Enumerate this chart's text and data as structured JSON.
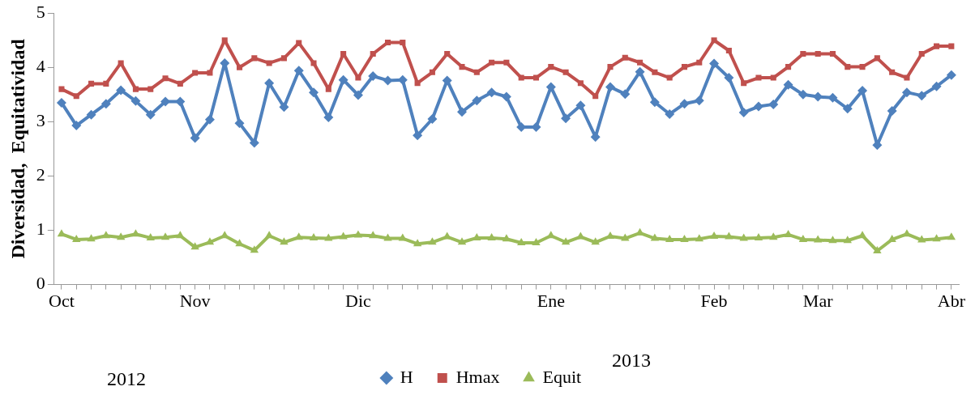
{
  "chart_data": {
    "type": "line",
    "ylabel": "Diversidad,  Equitatividad",
    "categories": [
      "Oct",
      null,
      null,
      null,
      null,
      null,
      null,
      null,
      null,
      "Nov",
      null,
      null,
      null,
      null,
      null,
      null,
      null,
      null,
      null,
      null,
      "Dic",
      null,
      null,
      null,
      null,
      null,
      null,
      null,
      null,
      null,
      null,
      null,
      null,
      "Ene",
      null,
      null,
      null,
      null,
      null,
      null,
      null,
      null,
      null,
      null,
      "Feb",
      null,
      null,
      null,
      null,
      null,
      null,
      "Mar",
      null,
      null,
      null,
      null,
      null,
      null,
      null,
      null,
      "Abr"
    ],
    "series": [
      {
        "name": "H",
        "color": "#4f81bd",
        "marker": "diamond",
        "values": [
          3.35,
          2.93,
          3.13,
          3.33,
          3.58,
          3.38,
          3.13,
          3.37,
          3.37,
          2.7,
          3.04,
          4.08,
          2.97,
          2.61,
          3.71,
          3.27,
          3.94,
          3.54,
          3.08,
          3.77,
          3.49,
          3.84,
          3.76,
          3.77,
          2.75,
          3.05,
          3.76,
          3.18,
          3.39,
          3.54,
          3.46,
          2.9,
          2.9,
          3.64,
          3.06,
          3.3,
          2.72,
          3.64,
          3.51,
          3.92,
          3.36,
          3.14,
          3.33,
          3.39,
          4.07,
          3.81,
          3.17,
          3.28,
          3.32,
          3.68,
          3.5,
          3.46,
          3.44,
          3.24,
          3.57,
          2.57,
          3.2,
          3.54,
          3.48,
          3.65,
          3.86
        ]
      },
      {
        "name": "Hmax",
        "color": "#c0504d",
        "marker": "square",
        "values": [
          3.6,
          3.47,
          3.7,
          3.7,
          4.08,
          3.6,
          3.6,
          3.8,
          3.7,
          3.9,
          3.9,
          4.5,
          4.0,
          4.17,
          4.08,
          4.17,
          4.45,
          4.08,
          3.6,
          4.25,
          3.81,
          4.25,
          4.46,
          4.46,
          3.71,
          3.91,
          4.25,
          4.01,
          3.91,
          4.09,
          4.09,
          3.81,
          3.81,
          4.01,
          3.91,
          3.71,
          3.47,
          4.01,
          4.18,
          4.09,
          3.91,
          3.81,
          4.01,
          4.09,
          4.5,
          4.31,
          3.71,
          3.81,
          3.81,
          4.01,
          4.25,
          4.25,
          4.25,
          4.01,
          4.01,
          4.17,
          3.91,
          3.81,
          4.25,
          4.39,
          4.39
        ]
      },
      {
        "name": "Equit",
        "color": "#9bbb59",
        "marker": "triangle",
        "values": [
          0.93,
          0.83,
          0.84,
          0.9,
          0.87,
          0.93,
          0.86,
          0.87,
          0.9,
          0.69,
          0.78,
          0.9,
          0.75,
          0.63,
          0.9,
          0.78,
          0.87,
          0.86,
          0.85,
          0.88,
          0.91,
          0.9,
          0.85,
          0.85,
          0.75,
          0.78,
          0.88,
          0.78,
          0.86,
          0.86,
          0.84,
          0.77,
          0.77,
          0.9,
          0.78,
          0.88,
          0.78,
          0.89,
          0.85,
          0.95,
          0.85,
          0.83,
          0.83,
          0.84,
          0.89,
          0.88,
          0.85,
          0.86,
          0.87,
          0.92,
          0.83,
          0.82,
          0.81,
          0.81,
          0.9,
          0.62,
          0.83,
          0.93,
          0.82,
          0.84,
          0.87
        ]
      }
    ],
    "ylim": [
      0,
      5
    ],
    "yticks": [
      0,
      1,
      2,
      3,
      4,
      5
    ],
    "annotations": [
      "2013",
      "2012"
    ],
    "legend": "bottom",
    "grid": false,
    "line_style": "solid"
  }
}
